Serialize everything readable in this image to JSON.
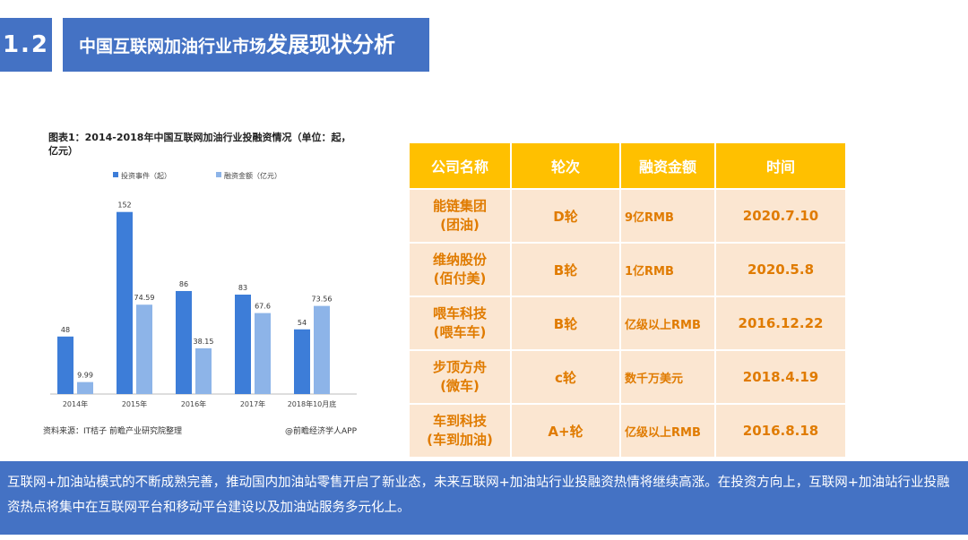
{
  "header": {
    "section_number": "1.2",
    "title_part1": "中国互联网加油行业市场",
    "title_part2": "发展现状分析"
  },
  "chart_data": {
    "type": "bar",
    "title": "图表1：2014-2018年中国互联网加油行业投融资情况（单位：起，亿元）",
    "categories": [
      "2014年",
      "2015年",
      "2016年",
      "2017年",
      "2018年10月底"
    ],
    "series": [
      {
        "name": "投资事件（起）",
        "values": [
          48,
          152,
          86,
          83,
          54
        ],
        "color": "#3d7dd8"
      },
      {
        "name": "融资金额（亿元）",
        "values": [
          9.99,
          74.59,
          38.15,
          67.6,
          73.56
        ],
        "color": "#8db4e8"
      }
    ],
    "legend_position": "top",
    "ylim": [
      0,
      160
    ],
    "grid": false
  },
  "chart_footer": {
    "source": "资料来源：IT桔子  前瞻产业研究院整理",
    "app": "@前瞻经济学人APP"
  },
  "table": {
    "headers": [
      "公司名称",
      "轮次",
      "融资金额",
      "时间"
    ],
    "rows": [
      {
        "name_line1": "能链集团",
        "name_line2": "(团油)",
        "round": "D轮",
        "amount": "9亿RMB",
        "time": "2020.7.10"
      },
      {
        "name_line1": "维纳股份",
        "name_line2": "(佰付美)",
        "round": "B轮",
        "amount": "1亿RMB",
        "time": "2020.5.8"
      },
      {
        "name_line1": "喂车科技",
        "name_line2": "(喂车车)",
        "round": "B轮",
        "amount": "亿级以上RMB",
        "time": "2016.12.22"
      },
      {
        "name_line1": "步顶方舟",
        "name_line2": "(微车)",
        "round": "c轮",
        "amount": "数千万美元",
        "time": "2018.4.19"
      },
      {
        "name_line1": "车到科技",
        "name_line2": "(车到加油)",
        "round": "A+轮",
        "amount": "亿级以上RMB",
        "time": "2016.8.18"
      }
    ]
  },
  "bottom_text": "互联网+加油站模式的不断成熟完善，推动国内加油站零售开启了新业态，未来互联网+加油站行业投融资热情将继续高涨。在投资方向上，互联网+加油站行业投融资热点将集中在互联网平台和移动平台建设以及加油站服务多元化上。"
}
